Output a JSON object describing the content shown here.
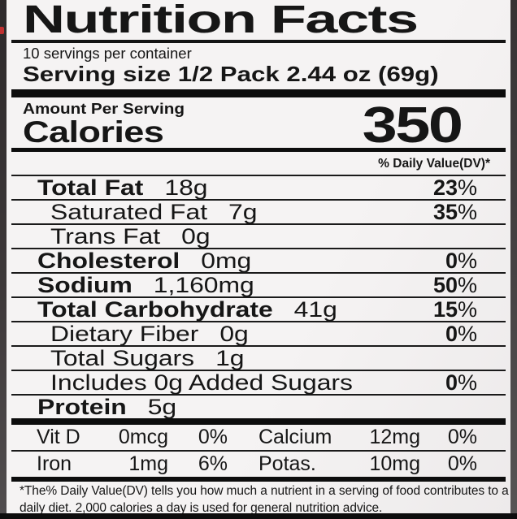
{
  "label": {
    "title": "Nutrition Facts",
    "servings_per_container": "10 servings per container",
    "serving_size_label": "Serving size",
    "serving_size_value": "1/2 Pack 2.44 oz (69g)",
    "amount_per_serving": "Amount Per Serving",
    "calories_label": "Calories",
    "calories_value": "350",
    "daily_value_header": "% Daily Value(DV)*",
    "nutrient_rows": [
      {
        "name": "Total Fat",
        "amount": "18g",
        "dv": "23",
        "bold": true,
        "indent": 1
      },
      {
        "name": "Saturated Fat",
        "amount": "7g",
        "dv": "35",
        "bold": false,
        "indent": 2
      },
      {
        "name": "Trans Fat",
        "amount": "0g",
        "dv": "",
        "bold": false,
        "indent": 2
      },
      {
        "name": "Cholesterol",
        "amount": "0mg",
        "dv": "0",
        "bold": true,
        "indent": 1
      },
      {
        "name": "Sodium",
        "amount": "1,160mg",
        "dv": "50",
        "bold": true,
        "indent": 1
      },
      {
        "name": "Total Carbohydrate",
        "amount": "41g",
        "dv": "15",
        "bold": true,
        "indent": 1
      },
      {
        "name": "Dietary Fiber",
        "amount": "0g",
        "dv": "0",
        "bold": false,
        "indent": 2
      },
      {
        "name": "Total Sugars",
        "amount": "1g",
        "dv": "",
        "bold": false,
        "indent": 2
      },
      {
        "name": "Includes 0g Added Sugars",
        "amount": "",
        "dv": "0",
        "bold": false,
        "indent": 2
      },
      {
        "name": "Protein",
        "amount": "5g",
        "dv": "",
        "bold": true,
        "indent": 1
      }
    ],
    "micro_rows": [
      [
        {
          "name": "Vit D",
          "amount": "0mcg",
          "dv": "0%"
        },
        {
          "name": "Calcium",
          "amount": "12mg",
          "dv": "0%"
        }
      ],
      [
        {
          "name": "Iron",
          "amount": "1mg",
          "dv": "6%"
        },
        {
          "name": "Potas.",
          "amount": "10mg",
          "dv": "0%"
        }
      ]
    ],
    "footnote": "*The% Daily Value(DV) tells you how much a nutrient in a serving of food contributes to a daily diet. 2,000 calories a day is used for general nutrition advice."
  },
  "colors": {
    "label_background": "#f5f3f3",
    "text": "#161616",
    "bar": "#0d0d0d",
    "photo_edge": "#3d3839",
    "red_speck": "#c03131"
  }
}
